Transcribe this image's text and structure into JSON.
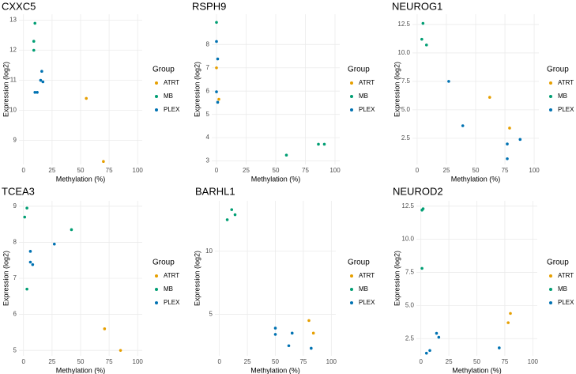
{
  "chart_data": [
    {
      "type": "scatter",
      "title": "CXXC5",
      "x_label": "Methylation (%)",
      "y_label": "Expression (log2)",
      "legend_title": "Group",
      "grid": true,
      "xlim": [
        -4,
        104
      ],
      "xticks": [
        0,
        25,
        50,
        75,
        100
      ],
      "ylim": [
        8.2,
        13.2
      ],
      "yticks": [
        9,
        10,
        11,
        12,
        13
      ],
      "series": [
        {
          "name": "ATRT",
          "color": "#e69f00",
          "x": [
            55,
            70
          ],
          "values": [
            10.4,
            8.3
          ]
        },
        {
          "name": "MB",
          "color": "#009e73",
          "x": [
            10,
            9,
            9
          ],
          "values": [
            12.9,
            12.3,
            12.0
          ]
        },
        {
          "name": "PLEX",
          "color": "#0072b2",
          "x": [
            16,
            15,
            17,
            10,
            12
          ],
          "values": [
            11.3,
            11.0,
            10.95,
            10.6,
            10.6
          ]
        }
      ]
    },
    {
      "type": "scatter",
      "title": "RSPH9",
      "x_label": "Methylation (%)",
      "y_label": "Expression (log2)",
      "legend_title": "Group",
      "grid": true,
      "xlim": [
        -4,
        104
      ],
      "xticks": [
        0,
        25,
        50,
        75,
        100
      ],
      "ylim": [
        2.85,
        9.3
      ],
      "yticks": [
        3,
        4,
        5,
        6,
        7,
        8
      ],
      "series": [
        {
          "name": "ATRT",
          "color": "#e69f00",
          "x": [
            0,
            2
          ],
          "values": [
            7.0,
            5.65
          ]
        },
        {
          "name": "MB",
          "color": "#009e73",
          "x": [
            0,
            59,
            86,
            91
          ],
          "values": [
            8.95,
            3.25,
            3.72,
            3.72
          ]
        },
        {
          "name": "PLEX",
          "color": "#0072b2",
          "x": [
            0,
            1,
            0,
            1
          ],
          "values": [
            8.13,
            7.38,
            5.97,
            5.52
          ]
        }
      ]
    },
    {
      "type": "scatter",
      "title": "NEUROG1",
      "x_label": "Methylation (%)",
      "y_label": "Expression (log2)",
      "legend_title": "Group",
      "grid": true,
      "xlim": [
        -4,
        104
      ],
      "xticks": [
        0,
        25,
        50,
        75,
        100
      ],
      "ylim": [
        0.2,
        13.4
      ],
      "yticks": [
        2.5,
        {
          "value": 5,
          "label": "5.0"
        },
        7.5,
        {
          "value": 10,
          "label": "10.0"
        },
        12.5
      ],
      "series": [
        {
          "name": "ATRT",
          "color": "#e69f00",
          "x": [
            62,
            79
          ],
          "values": [
            6.1,
            3.4
          ]
        },
        {
          "name": "MB",
          "color": "#009e73",
          "x": [
            5,
            4,
            8
          ],
          "values": [
            12.6,
            11.2,
            10.7
          ]
        },
        {
          "name": "PLEX",
          "color": "#0072b2",
          "x": [
            27,
            39,
            77,
            88,
            77
          ],
          "values": [
            7.5,
            3.6,
            2.0,
            2.4,
            0.7
          ]
        }
      ]
    },
    {
      "type": "scatter",
      "title": "TCEA3",
      "x_label": "Methylation (%)",
      "y_label": "Expression (log2)",
      "legend_title": "Group",
      "grid": true,
      "xlim": [
        -4,
        104
      ],
      "xticks": [
        0,
        25,
        50,
        75,
        100
      ],
      "ylim": [
        4.85,
        9.15
      ],
      "yticks": [
        5,
        6,
        7,
        8,
        9
      ],
      "series": [
        {
          "name": "ATRT",
          "color": "#e69f00",
          "x": [
            71,
            85
          ],
          "values": [
            5.6,
            5.0
          ]
        },
        {
          "name": "MB",
          "color": "#009e73",
          "x": [
            3,
            1,
            42,
            3
          ],
          "values": [
            8.95,
            8.7,
            8.35,
            6.7
          ]
        },
        {
          "name": "PLEX",
          "color": "#0072b2",
          "x": [
            6,
            6,
            8,
            27
          ],
          "values": [
            7.75,
            7.45,
            7.38,
            7.95
          ]
        }
      ]
    },
    {
      "type": "scatter",
      "title": "BARHL1",
      "x_label": "Methylation (%)",
      "y_label": "Expression (log2)",
      "legend_title": "Group",
      "grid": true,
      "xlim": [
        -4,
        104
      ],
      "xticks": [
        0,
        25,
        50,
        75,
        100
      ],
      "ylim": [
        1.7,
        14
      ],
      "yticks": [
        5,
        10
      ],
      "series": [
        {
          "name": "ATRT",
          "color": "#e69f00",
          "x": [
            80,
            84
          ],
          "values": [
            4.5,
            3.5
          ]
        },
        {
          "name": "MB",
          "color": "#009e73",
          "x": [
            7,
            11,
            14
          ],
          "values": [
            12.5,
            13.3,
            12.9
          ]
        },
        {
          "name": "PLEX",
          "color": "#0072b2",
          "x": [
            50,
            50,
            65,
            62,
            82
          ],
          "values": [
            3.9,
            3.4,
            3.5,
            2.5,
            2.3
          ]
        }
      ]
    },
    {
      "type": "scatter",
      "title": "NEUROD2",
      "x_label": "Methylation (%)",
      "y_label": "Expression (log2)",
      "legend_title": "Group",
      "grid": true,
      "xlim": [
        -4,
        104
      ],
      "xticks": [
        0,
        25,
        50,
        75,
        100
      ],
      "ylim": [
        1.2,
        12.9
      ],
      "yticks": [
        2.5,
        {
          "value": 5,
          "label": "5.0"
        },
        7.5,
        {
          "value": 10,
          "label": "10.0"
        },
        12.5
      ],
      "series": [
        {
          "name": "ATRT",
          "color": "#e69f00",
          "x": [
            80,
            78
          ],
          "values": [
            4.4,
            3.7
          ]
        },
        {
          "name": "MB",
          "color": "#009e73",
          "x": [
            1,
            2,
            1
          ],
          "values": [
            12.2,
            12.3,
            7.8
          ]
        },
        {
          "name": "PLEX",
          "color": "#0072b2",
          "x": [
            14,
            16,
            8,
            5,
            70
          ],
          "values": [
            2.9,
            2.6,
            1.6,
            1.4,
            1.8
          ]
        }
      ]
    }
  ]
}
